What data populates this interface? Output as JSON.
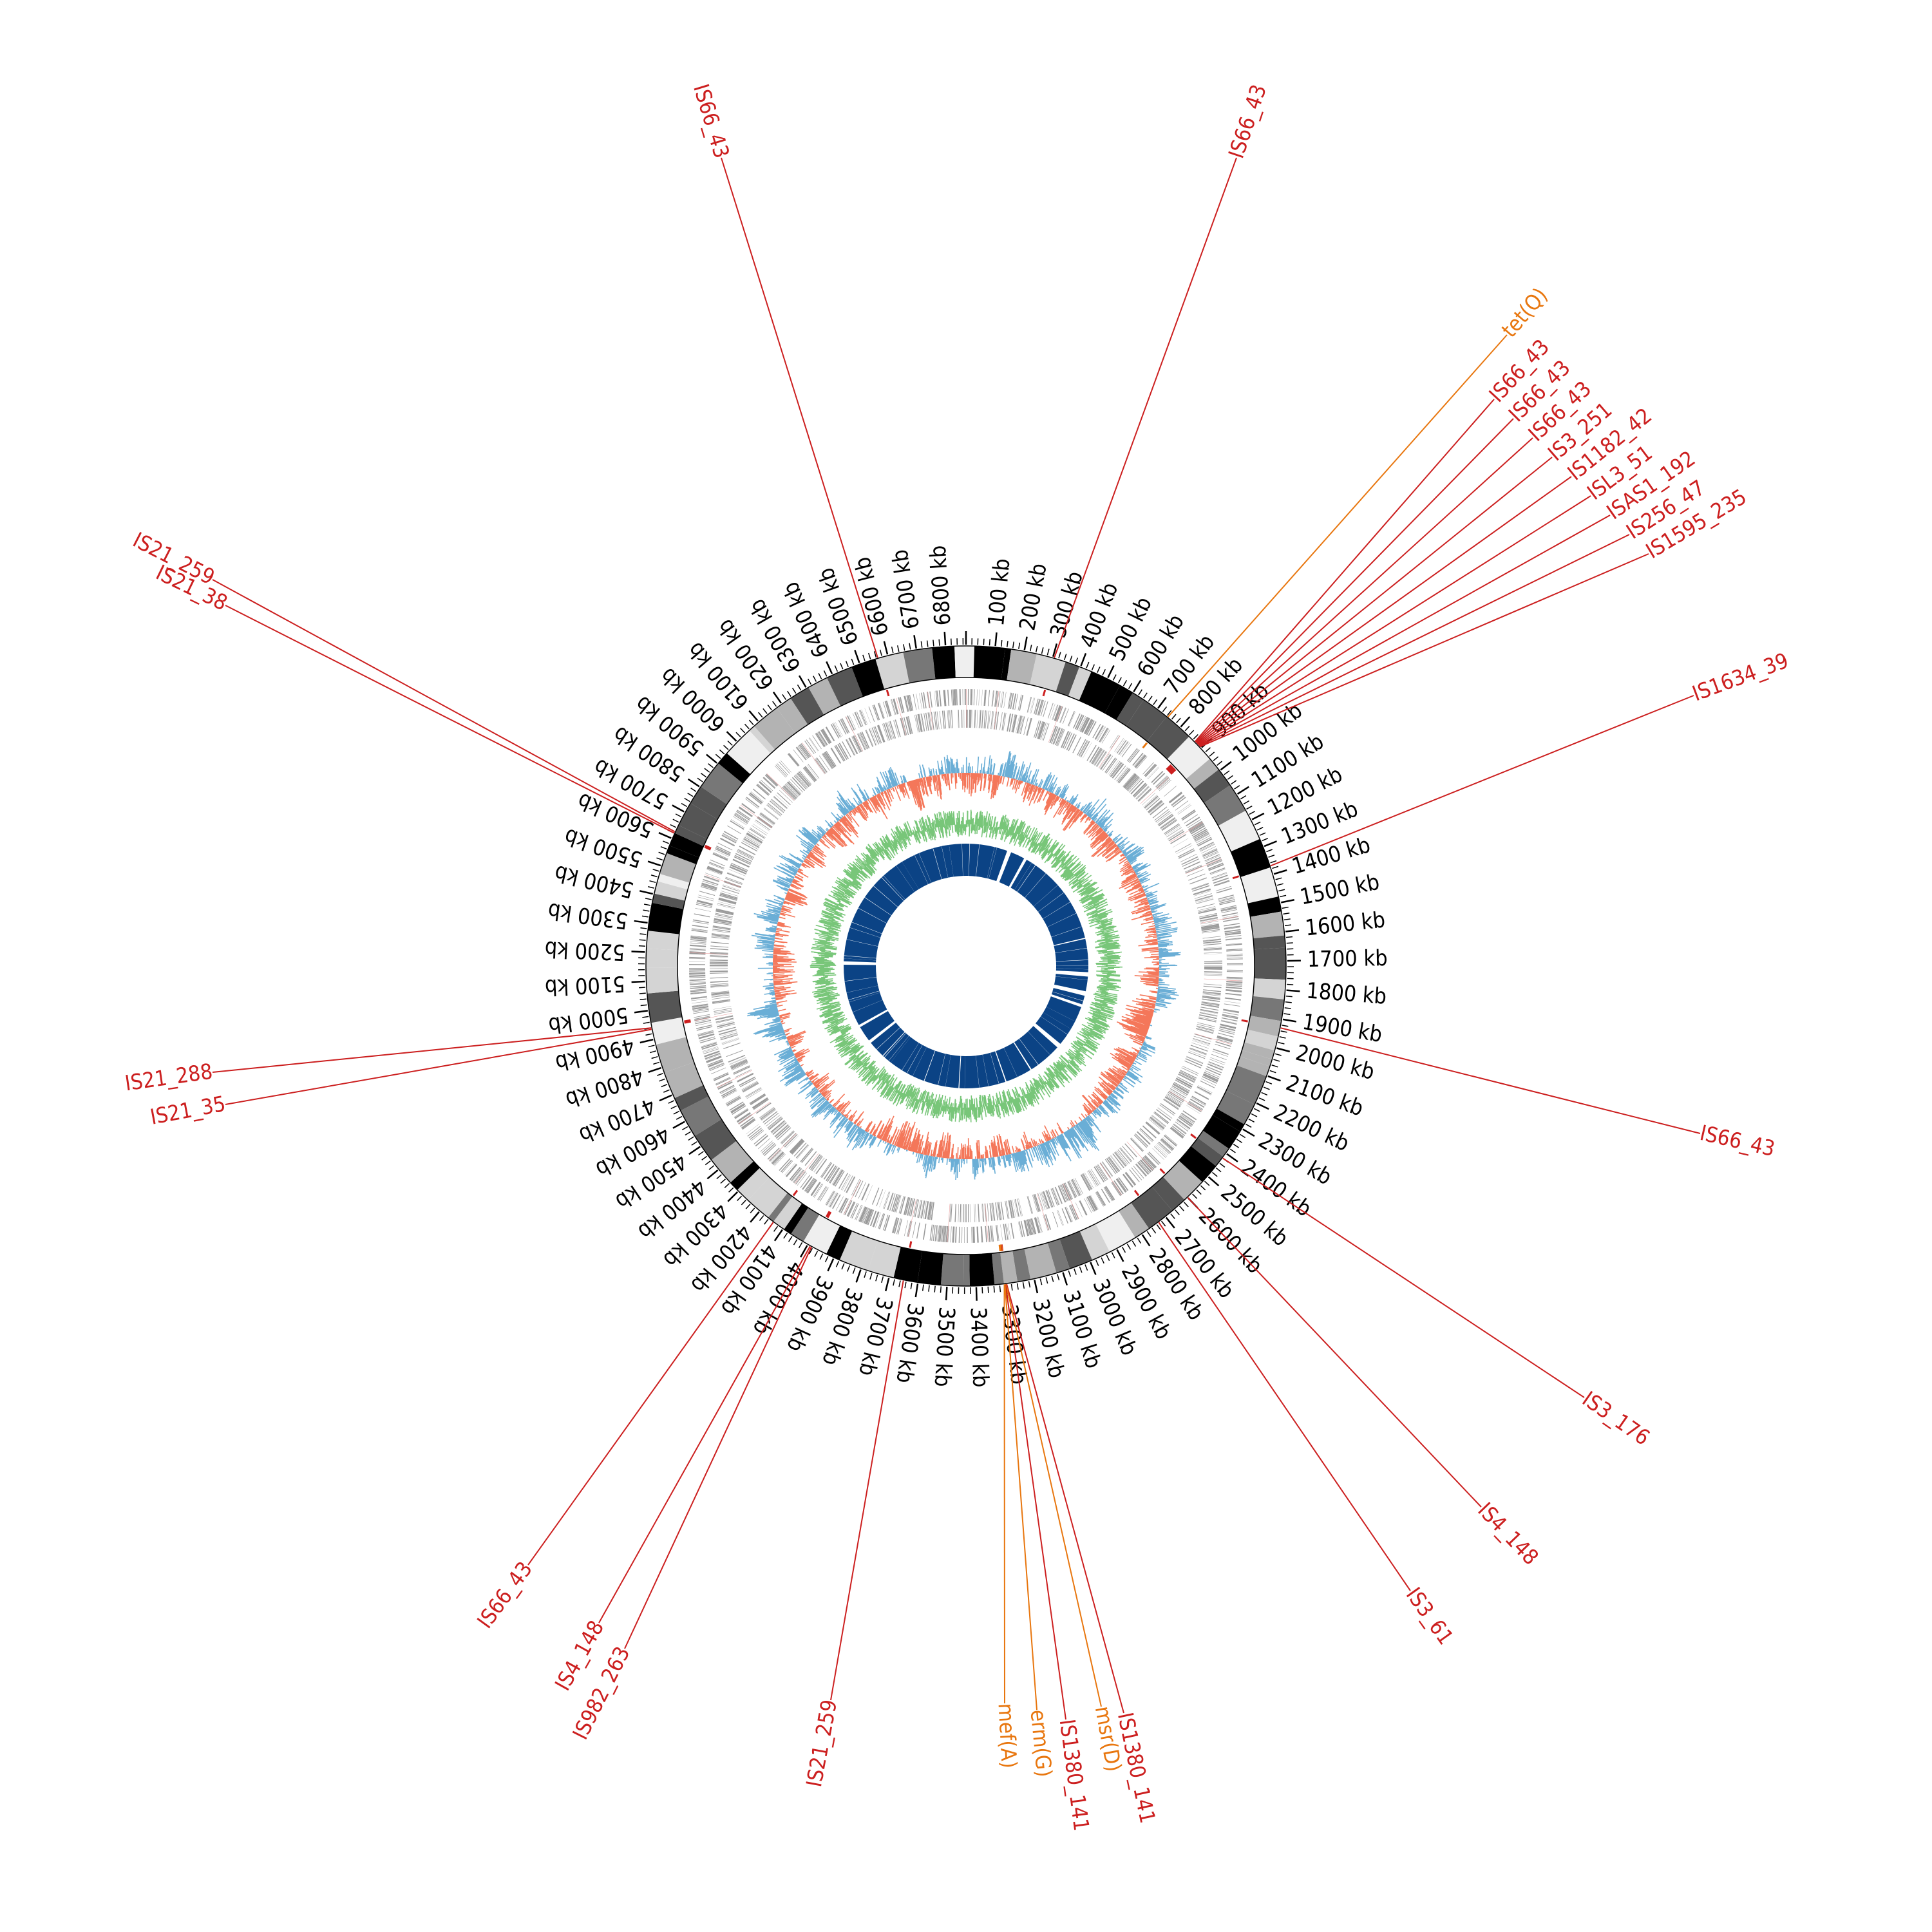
{
  "genome": {
    "length_kb": 6870,
    "tick_unit": "kb",
    "tick_step_kb": 100
  },
  "ticks": [
    100,
    200,
    300,
    400,
    500,
    600,
    700,
    800,
    900,
    1000,
    1100,
    1200,
    1300,
    1400,
    1500,
    1600,
    1700,
    1800,
    1900,
    2000,
    2100,
    2200,
    2300,
    2400,
    2500,
    2600,
    2700,
    2800,
    2900,
    3000,
    3100,
    3200,
    3300,
    3400,
    3500,
    3600,
    3700,
    3800,
    3900,
    4000,
    4100,
    4200,
    4300,
    4400,
    4500,
    4600,
    4700,
    4800,
    4900,
    5000,
    5100,
    5200,
    5300,
    5400,
    5500,
    5600,
    5700,
    5800,
    5900,
    6000,
    6100,
    6200,
    6300,
    6400,
    6500,
    6600,
    6700,
    6800
  ],
  "colors": {
    "is_element": "#cc1f1f",
    "resistance_gene": "#e8760e",
    "gc_skew_pos": "#6aaed6",
    "gc_skew_neg": "#f4775a",
    "gc_content": "#78c679",
    "similarity": "#0b4385",
    "genes": "#9a9a9a"
  },
  "annotations": [
    {
      "label": "IS66_43",
      "kb": 6565,
      "type": "is_element"
    },
    {
      "label": "IS66_43",
      "kb": 305,
      "type": "is_element"
    },
    {
      "label": "tet(Q)",
      "kb": 745,
      "type": "resistance_gene"
    },
    {
      "label": "IS66_43",
      "kb": 870,
      "type": "is_element"
    },
    {
      "label": "IS66_43",
      "kb": 873,
      "type": "is_element"
    },
    {
      "label": "IS66_43",
      "kb": 876,
      "type": "is_element"
    },
    {
      "label": "IS3_251",
      "kb": 879,
      "type": "is_element"
    },
    {
      "label": "IS1182_42",
      "kb": 882,
      "type": "is_element"
    },
    {
      "label": "ISL3_51",
      "kb": 885,
      "type": "is_element"
    },
    {
      "label": "ISAS1_192",
      "kb": 888,
      "type": "is_element"
    },
    {
      "label": "IS256_47",
      "kb": 891,
      "type": "is_element"
    },
    {
      "label": "IS1595_235",
      "kb": 894,
      "type": "is_element"
    },
    {
      "label": "IS1634_39",
      "kb": 1370,
      "type": "is_element"
    },
    {
      "label": "IS66_43",
      "kb": 1930,
      "type": "is_element"
    },
    {
      "label": "IS3_176",
      "kb": 2420,
      "type": "is_element"
    },
    {
      "label": "IS4_148",
      "kb": 2600,
      "type": "is_element"
    },
    {
      "label": "IS3_61",
      "kb": 2730,
      "type": "is_element"
    },
    {
      "label": "IS1380_141",
      "kb": 3296,
      "type": "is_element"
    },
    {
      "label": "msr(D)",
      "kb": 3298,
      "type": "resistance_gene"
    },
    {
      "label": "IS1380_141",
      "kb": 3300,
      "type": "is_element"
    },
    {
      "label": "erm(G)",
      "kb": 3302,
      "type": "resistance_gene"
    },
    {
      "label": "mef(A)",
      "kb": 3304,
      "type": "resistance_gene"
    },
    {
      "label": "IS21_259",
      "kb": 3650,
      "type": "is_element"
    },
    {
      "label": "IS982_263",
      "kb": 3985,
      "type": "is_element"
    },
    {
      "label": "IS4_148",
      "kb": 3990,
      "type": "is_element"
    },
    {
      "label": "IS66_43",
      "kb": 4140,
      "type": "is_element"
    },
    {
      "label": "IS21_35",
      "kb": 4935,
      "type": "is_element"
    },
    {
      "label": "IS21_288",
      "kb": 4940,
      "type": "is_element"
    },
    {
      "label": "IS21_38",
      "kb": 5620,
      "type": "is_element"
    },
    {
      "label": "IS21_259",
      "kb": 5625,
      "type": "is_element"
    }
  ],
  "annotation_label_positions": [
    {
      "index": 0,
      "ex": 1120,
      "ey": 245
    },
    {
      "index": 1,
      "ex": 1920,
      "ey": 245
    },
    {
      "index": 2,
      "ex": 2340,
      "ey": 520
    },
    {
      "index": 3,
      "ex": 2320,
      "ey": 620
    },
    {
      "index": 4,
      "ex": 2350,
      "ey": 650
    },
    {
      "index": 5,
      "ex": 2380,
      "ey": 680
    },
    {
      "index": 6,
      "ex": 2410,
      "ey": 710
    },
    {
      "index": 7,
      "ex": 2440,
      "ey": 740
    },
    {
      "index": 8,
      "ex": 2470,
      "ey": 770
    },
    {
      "index": 9,
      "ex": 2500,
      "ey": 800
    },
    {
      "index": 10,
      "ex": 2530,
      "ey": 830
    },
    {
      "index": 11,
      "ex": 2560,
      "ey": 860
    },
    {
      "index": 12,
      "ex": 2630,
      "ey": 1080
    },
    {
      "index": 13,
      "ex": 2640,
      "ey": 1760
    },
    {
      "index": 14,
      "ex": 2460,
      "ey": 2170
    },
    {
      "index": 15,
      "ex": 2300,
      "ey": 2340
    },
    {
      "index": 16,
      "ex": 2190,
      "ey": 2470
    },
    {
      "index": 17,
      "ex": 1745,
      "ey": 2660
    },
    {
      "index": 18,
      "ex": 1710,
      "ey": 2650
    },
    {
      "index": 19,
      "ex": 1655,
      "ey": 2670
    },
    {
      "index": 20,
      "ex": 1610,
      "ey": 2655
    },
    {
      "index": 21,
      "ex": 1560,
      "ey": 2645
    },
    {
      "index": 22,
      "ex": 1290,
      "ey": 2640
    },
    {
      "index": 23,
      "ex": 970,
      "ey": 2560
    },
    {
      "index": 24,
      "ex": 930,
      "ey": 2520
    },
    {
      "index": 25,
      "ex": 820,
      "ey": 2430
    },
    {
      "index": 26,
      "ex": 350,
      "ey": 1715
    },
    {
      "index": 27,
      "ex": 330,
      "ey": 1665
    },
    {
      "index": 28,
      "ex": 350,
      "ey": 940
    },
    {
      "index": 29,
      "ex": 330,
      "ey": 900
    }
  ]
}
